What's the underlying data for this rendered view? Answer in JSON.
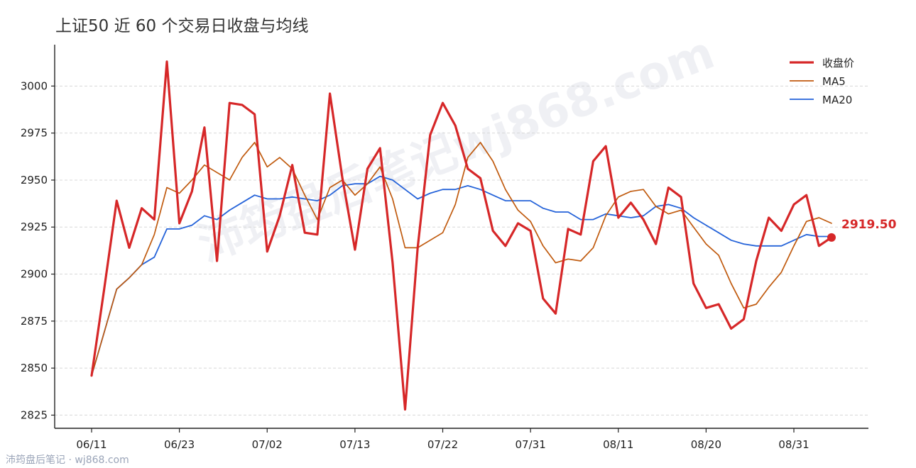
{
  "chart_data": {
    "type": "line",
    "title": "上证50 近 60 个交易日收盘与均线",
    "xlabel": "",
    "ylabel": "",
    "ylim": [
      2818,
      3022
    ],
    "yticks": [
      2825,
      2850,
      2875,
      2900,
      2925,
      2950,
      2975,
      3000
    ],
    "xticks": [
      {
        "i": 0,
        "label": "06/11"
      },
      {
        "i": 7,
        "label": "06/23"
      },
      {
        "i": 14,
        "label": "07/02"
      },
      {
        "i": 21,
        "label": "07/13"
      },
      {
        "i": 28,
        "label": "07/22"
      },
      {
        "i": 35,
        "label": "07/31"
      },
      {
        "i": 42,
        "label": "08/11"
      },
      {
        "i": 49,
        "label": "08/20"
      },
      {
        "i": 56,
        "label": "08/31"
      }
    ],
    "grid": true,
    "legend_position": "top-right",
    "series": [
      {
        "name": "收盘价",
        "color": "#d62728",
        "values": [
          2846,
          2892,
          2939,
          2914,
          2935,
          2929,
          3013,
          2927,
          2944,
          2978,
          2907,
          2991,
          2990,
          2985,
          2912,
          2931,
          2958,
          2922,
          2921,
          2996,
          2951,
          2913,
          2956,
          2967,
          2906,
          2828,
          2914,
          2974,
          2991,
          2979,
          2956,
          2951,
          2923,
          2915,
          2927,
          2923,
          2887,
          2879,
          2924,
          2921,
          2960,
          2968,
          2930,
          2938,
          2929,
          2916,
          2946,
          2941,
          2895,
          2882,
          2884,
          2871,
          2876,
          2907,
          2930,
          2923,
          2937,
          2942,
          2915,
          2919.5
        ]
      },
      {
        "name": "MA5",
        "color": "#c05a0e",
        "values": [
          2846,
          2869,
          2892,
          2898,
          2905,
          2921,
          2946,
          2943,
          2950,
          2958,
          2954,
          2950,
          2962,
          2970,
          2957,
          2962,
          2956,
          2942,
          2929,
          2946,
          2950,
          2942,
          2948,
          2957,
          2940,
          2914,
          2914,
          2918,
          2922,
          2937,
          2962,
          2970,
          2960,
          2945,
          2934,
          2928,
          2915,
          2906,
          2908,
          2907,
          2914,
          2931,
          2941,
          2944,
          2945,
          2936,
          2932,
          2934,
          2925,
          2916,
          2910,
          2895,
          2882,
          2884,
          2893,
          2901,
          2915,
          2928,
          2930,
          2927
        ]
      },
      {
        "name": "MA20",
        "color": "#2563d9",
        "values": [
          2846,
          2869,
          2892,
          2898,
          2905,
          2909,
          2924,
          2924,
          2926,
          2931,
          2929,
          2934,
          2938,
          2942,
          2940,
          2940,
          2941,
          2940,
          2939,
          2942,
          2947,
          2948,
          2948,
          2952,
          2950,
          2945,
          2940,
          2943,
          2945,
          2945,
          2947,
          2945,
          2942,
          2939,
          2939,
          2939,
          2935,
          2933,
          2933,
          2929,
          2929,
          2932,
          2931,
          2930,
          2931,
          2936,
          2937,
          2935,
          2930,
          2926,
          2922,
          2918,
          2916,
          2915,
          2915,
          2915,
          2918,
          2921,
          2920,
          2920
        ]
      }
    ],
    "last_value_label": "2919.50"
  },
  "watermark": "沛筠盘后笔记wj868.com",
  "footer": "沛筠盘后笔记 · wj868.com"
}
